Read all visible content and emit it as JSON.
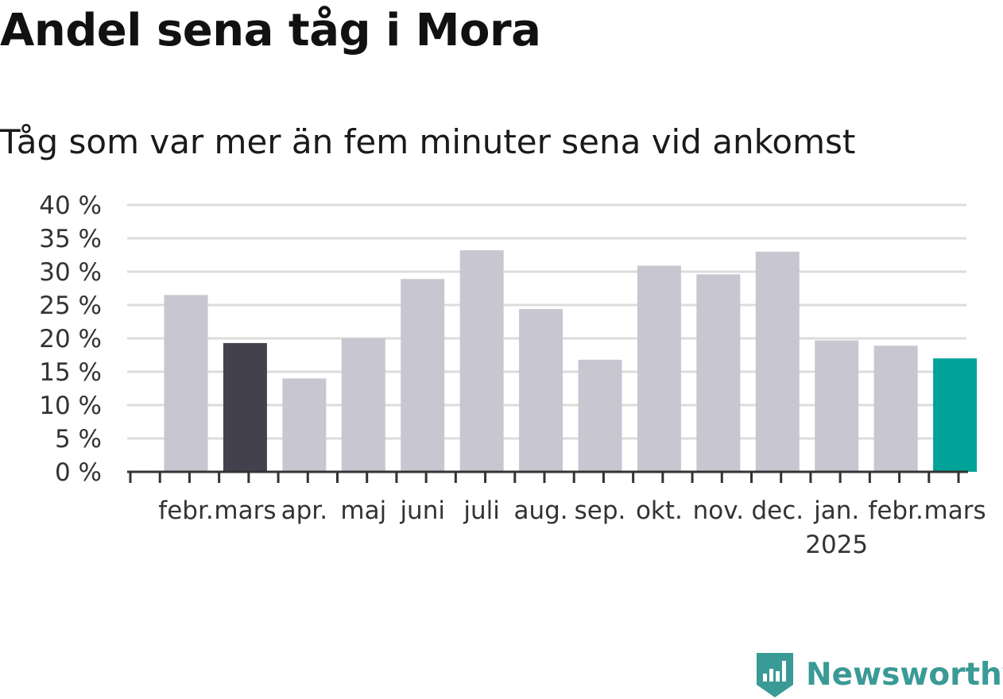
{
  "header": {
    "title": "Andel sena tåg i Mora",
    "subtitle": "Tåg som var mer än fem minuter sena vid ankomst"
  },
  "logo": {
    "text": "Newsworthy",
    "icon": "bar-chart-badge-icon",
    "color": "#3a9a96"
  },
  "colors": {
    "default_bar": "#c8c6d0",
    "highlight_previous_year": "#44414f",
    "highlight_latest": "#00a398",
    "gridline": "#dcdcdc",
    "axis": "#333333"
  },
  "chart_data": {
    "type": "bar",
    "categories": [
      "febr.",
      "mars",
      "apr.",
      "maj",
      "juni",
      "juli",
      "aug.",
      "sep.",
      "okt.",
      "nov.",
      "dec.",
      "jan.",
      "febr.",
      "mars"
    ],
    "category_sublabels": [
      "",
      "",
      "",
      "",
      "",
      "",
      "",
      "",
      "",
      "",
      "",
      "2025",
      "",
      ""
    ],
    "values": [
      26.5,
      19.3,
      14.0,
      20.0,
      28.9,
      33.2,
      24.4,
      16.8,
      30.9,
      29.6,
      33.0,
      19.7,
      18.9,
      17.0
    ],
    "highlight": [
      "none",
      "previous-year",
      "none",
      "none",
      "none",
      "none",
      "none",
      "none",
      "none",
      "none",
      "none",
      "none",
      "none",
      "latest"
    ],
    "y_ticks": [
      "0 %",
      "5 %",
      "10 %",
      "15 %",
      "20 %",
      "25 %",
      "30 %",
      "35 %",
      "40 %"
    ],
    "ylim": [
      0,
      40
    ],
    "ystep": 5,
    "grid": true,
    "legend": false
  }
}
